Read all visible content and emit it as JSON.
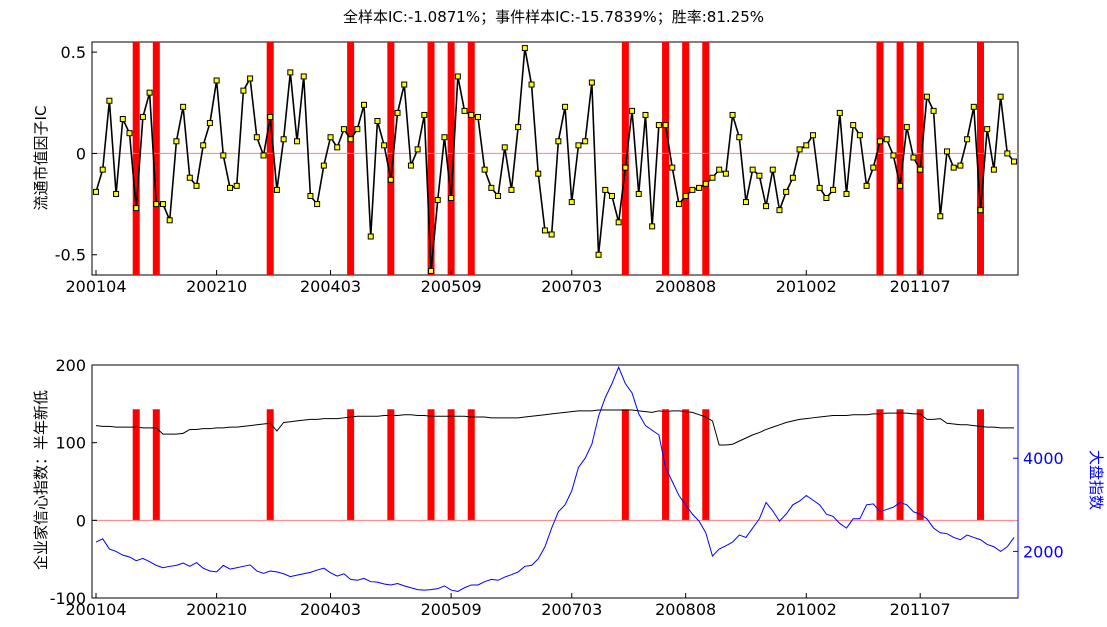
{
  "title": "全样本IC:-1.0871%；事件样本IC:-15.7839%；胜率:81.25%",
  "colors": {
    "event_bar": "#ff0000",
    "ic_line": "#000000",
    "ic_marker": "#ffff00",
    "zero_line": "#ff8080",
    "confidence_line": "#000000",
    "index_line": "#0000ff"
  },
  "chart_data": [
    {
      "type": "line",
      "ylabel": "流通市值因子IC",
      "ylim": [
        -0.6,
        0.55
      ],
      "yticks": [
        -0.5,
        0,
        0.5
      ],
      "ytick_labels": [
        "-0.5",
        "0",
        "0.5"
      ],
      "xtick_labels": [
        "200104",
        "200210",
        "200403",
        "200509",
        "200703",
        "200808",
        "201002",
        "201107"
      ],
      "xtick_index": [
        0,
        18,
        35,
        53,
        71,
        88,
        106,
        123
      ],
      "x_count": 138,
      "events_index": [
        6,
        9,
        26,
        38,
        44,
        50,
        53,
        56,
        79,
        85,
        88,
        91,
        117,
        120,
        123,
        132
      ],
      "series": [
        {
          "values": [
            -0.19,
            -0.08,
            0.26,
            -0.2,
            0.17,
            0.1,
            -0.27,
            0.18,
            0.3,
            -0.25,
            -0.25,
            -0.33,
            0.06,
            0.23,
            -0.12,
            -0.16,
            0.04,
            0.15,
            0.36,
            -0.01,
            -0.17,
            -0.16,
            0.31,
            0.37,
            0.08,
            -0.01,
            0.18,
            -0.18,
            0.07,
            0.4,
            0.06,
            0.38,
            -0.21,
            -0.25,
            -0.06,
            0.08,
            0.03,
            0.12,
            0.07,
            0.12,
            0.24,
            -0.41,
            0.16,
            0.04,
            -0.13,
            0.2,
            0.34,
            -0.06,
            0.02,
            0.19,
            -0.58,
            -0.23,
            0.08,
            -0.22,
            0.38,
            0.21,
            0.19,
            0.18,
            -0.08,
            -0.17,
            -0.21,
            0.03,
            -0.18,
            0.13,
            0.52,
            0.34,
            -0.1,
            -0.38,
            -0.4,
            0.06,
            0.23,
            -0.24,
            0.04,
            0.06,
            0.35,
            -0.5,
            -0.18,
            -0.21,
            -0.34,
            -0.07,
            0.21,
            -0.2,
            0.19,
            -0.36,
            0.14,
            0.14,
            -0.07,
            -0.25,
            -0.21,
            -0.18,
            -0.17,
            -0.15,
            -0.12,
            -0.08,
            -0.1,
            0.19,
            0.08,
            -0.24,
            -0.08,
            -0.11,
            -0.26,
            -0.08,
            -0.28,
            -0.19,
            -0.12,
            0.02,
            0.04,
            0.09,
            -0.17,
            -0.22,
            -0.18,
            0.2,
            -0.2,
            0.14,
            0.09,
            -0.16,
            -0.07,
            0.06,
            0.07,
            -0.01,
            -0.16,
            0.13,
            -0.02,
            -0.08,
            0.28,
            0.21,
            -0.31,
            0.01,
            -0.07,
            -0.06,
            0.07,
            0.23,
            -0.28,
            0.12,
            -0.08,
            0.28,
            0.0,
            -0.04
          ]
        }
      ]
    },
    {
      "type": "line",
      "ylabel": "企业家信心指数：半年新低",
      "ylabel_right": "大盘指数",
      "ylim": [
        -100,
        200
      ],
      "yticks": [
        -100,
        0,
        100,
        200
      ],
      "ytick_labels": [
        "-100",
        "0",
        "100",
        "200"
      ],
      "ylim_right": [
        1000,
        6000
      ],
      "yticks_right": [
        2000,
        4000
      ],
      "ytick_labels_right": [
        "2000",
        "4000"
      ],
      "xtick_labels": [
        "200104",
        "200210",
        "200403",
        "200509",
        "200703",
        "200808",
        "201002",
        "201107"
      ],
      "xtick_index": [
        0,
        18,
        35,
        53,
        71,
        88,
        106,
        123
      ],
      "x_count": 138,
      "events_index": [
        6,
        9,
        26,
        38,
        44,
        50,
        53,
        56,
        79,
        85,
        88,
        91,
        117,
        120,
        123,
        132
      ],
      "event_bar_height": 143,
      "series": [
        {
          "name": "企业家信心指数",
          "axis": "left",
          "values": [
            122,
            121,
            121,
            120,
            120,
            120,
            120,
            119,
            119,
            119,
            111,
            111,
            111,
            112,
            117,
            117,
            118,
            118,
            119,
            119,
            120,
            120,
            121,
            122,
            123,
            124,
            125,
            115,
            126,
            127,
            128,
            129,
            130,
            130,
            131,
            131,
            131,
            132,
            133,
            134,
            134,
            134,
            134,
            135,
            135,
            135,
            136,
            136,
            135,
            135,
            134,
            134,
            134,
            134,
            134,
            134,
            133,
            133,
            133,
            132,
            132,
            132,
            132,
            132,
            133,
            134,
            135,
            136,
            137,
            138,
            139,
            140,
            141,
            141,
            141,
            142,
            142,
            142,
            142,
            142,
            142,
            141,
            140,
            139,
            141,
            140,
            141,
            141,
            140,
            139,
            136,
            133,
            128,
            97,
            97,
            98,
            102,
            106,
            110,
            113,
            117,
            120,
            123,
            126,
            128,
            130,
            131,
            132,
            133,
            134,
            135,
            135,
            135,
            136,
            136,
            136,
            137,
            137,
            138,
            138,
            138,
            138,
            137,
            137,
            130,
            130,
            131,
            125,
            124,
            123,
            123,
            122,
            121,
            120,
            120,
            119,
            119,
            119
          ]
        },
        {
          "name": "大盘指数",
          "axis": "right",
          "values": [
            2200,
            2270,
            2050,
            2000,
            1920,
            1880,
            1800,
            1850,
            1780,
            1700,
            1650,
            1680,
            1700,
            1750,
            1680,
            1760,
            1640,
            1580,
            1560,
            1700,
            1620,
            1650,
            1680,
            1710,
            1580,
            1530,
            1580,
            1560,
            1520,
            1460,
            1490,
            1520,
            1550,
            1600,
            1640,
            1540,
            1470,
            1520,
            1400,
            1380,
            1420,
            1350,
            1340,
            1300,
            1280,
            1310,
            1260,
            1220,
            1180,
            1170,
            1180,
            1200,
            1260,
            1170,
            1140,
            1220,
            1280,
            1280,
            1350,
            1400,
            1380,
            1450,
            1500,
            1560,
            1680,
            1700,
            1840,
            2100,
            2500,
            2850,
            3000,
            3300,
            3800,
            4000,
            4300,
            4900,
            5300,
            5600,
            5954,
            5600,
            5400,
            4950,
            4700,
            4600,
            4500,
            3800,
            3500,
            3200,
            3000,
            2800,
            2650,
            2400,
            1900,
            2050,
            2120,
            2200,
            2350,
            2300,
            2500,
            2700,
            3050,
            2870,
            2650,
            2800,
            3000,
            3080,
            3200,
            3100,
            3000,
            2800,
            2750,
            2600,
            2500,
            2700,
            2700,
            3000,
            3020,
            2850,
            2900,
            2950,
            3050,
            3000,
            2850,
            2800,
            2700,
            2500,
            2400,
            2380,
            2300,
            2250,
            2350,
            2300,
            2250,
            2150,
            2100,
            2000,
            2100,
            2300
          ]
        }
      ]
    }
  ]
}
